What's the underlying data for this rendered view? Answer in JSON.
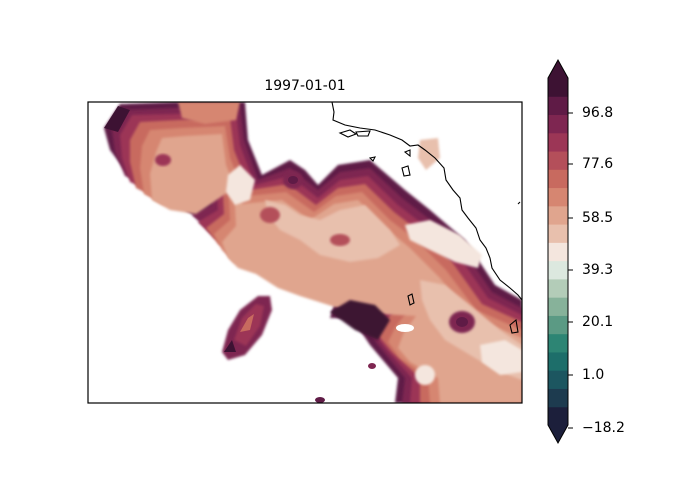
{
  "map": {
    "title": "1997-01-01",
    "variable_colormap": "tempo-like (teal → white → maroon)"
  },
  "colorbar": {
    "ticks": [
      "96.8",
      "77.6",
      "58.5",
      "39.3",
      "20.1",
      "1.0",
      "−18.2"
    ],
    "min": -18.2,
    "max": 106.4,
    "extend": "both",
    "levels": [
      "#1c1f3b",
      "#1d3b4f",
      "#1c5660",
      "#1d6e6a",
      "#2d8574",
      "#5b9a84",
      "#87b29a",
      "#b3ccb8",
      "#dce8df",
      "#f4e6de",
      "#e8c0ad",
      "#e0a58e",
      "#d68671",
      "#c86a5f",
      "#b44f5a",
      "#9c3656",
      "#7e2651",
      "#5f1b46",
      "#3d1233"
    ]
  }
}
